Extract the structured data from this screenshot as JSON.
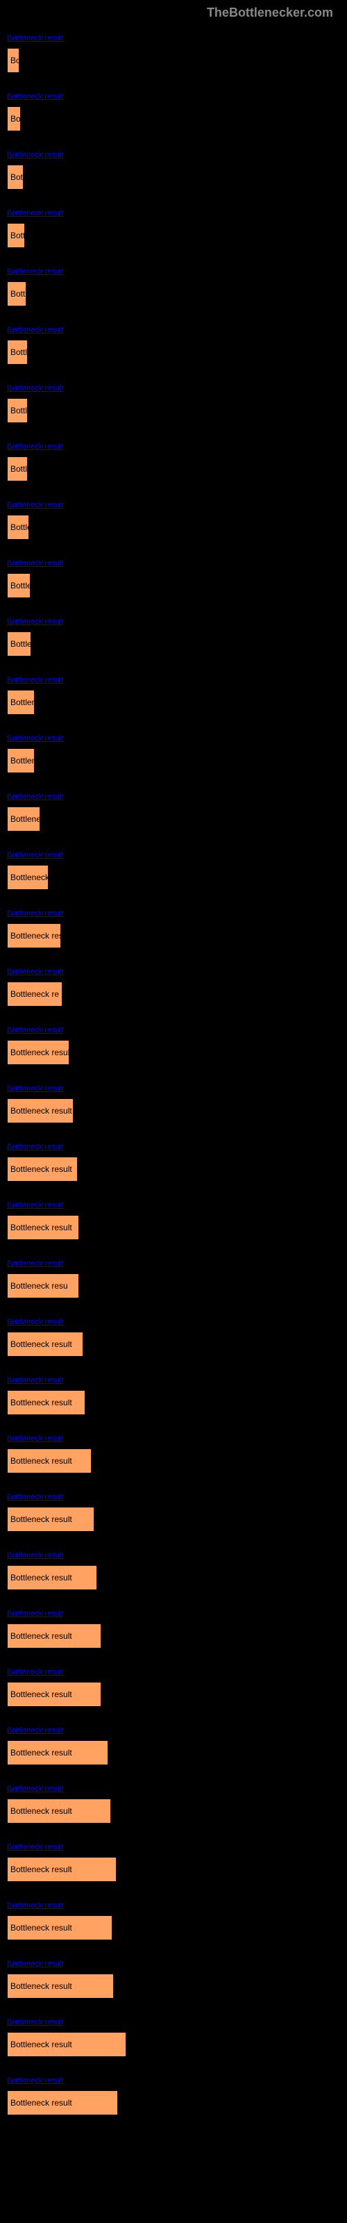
{
  "header": {
    "text": "TheBottlenecker.com"
  },
  "chart": {
    "type": "bar",
    "background_color": "#000000",
    "bar_color": "#ffa262",
    "bar_border_color": "#000000",
    "link_color": "#0000ff",
    "label_color": "#000000",
    "header_color": "#888888",
    "max_width": 172,
    "bars": [
      {
        "link": "Bottleneck result",
        "label": "Bo",
        "width": 18
      },
      {
        "link": "Bottleneck result",
        "label": "Bo",
        "width": 20
      },
      {
        "link": "Bottleneck result",
        "label": "Bot",
        "width": 24
      },
      {
        "link": "Bottleneck result",
        "label": "Bott",
        "width": 26
      },
      {
        "link": "Bottleneck result",
        "label": "Bott",
        "width": 28
      },
      {
        "link": "Bottleneck result",
        "label": "Bottl",
        "width": 30
      },
      {
        "link": "Bottleneck result",
        "label": "Bottl",
        "width": 30
      },
      {
        "link": "Bottleneck result",
        "label": "Bottl",
        "width": 30
      },
      {
        "link": "Bottleneck result",
        "label": "Bottle",
        "width": 32
      },
      {
        "link": "Bottleneck result",
        "label": "Bottle",
        "width": 34
      },
      {
        "link": "Bottleneck result",
        "label": "Bottle",
        "width": 35
      },
      {
        "link": "Bottleneck result",
        "label": "Bottlen",
        "width": 40
      },
      {
        "link": "Bottleneck result",
        "label": "Bottlen",
        "width": 40
      },
      {
        "link": "Bottleneck result",
        "label": "Bottlene",
        "width": 48
      },
      {
        "link": "Bottleneck result",
        "label": "Bottleneck",
        "width": 60
      },
      {
        "link": "Bottleneck result",
        "label": "Bottleneck resu",
        "width": 78
      },
      {
        "link": "Bottleneck result",
        "label": "Bottleneck re",
        "width": 80
      },
      {
        "link": "Bottleneck result",
        "label": "Bottleneck result",
        "width": 90
      },
      {
        "link": "Bottleneck result",
        "label": "Bottleneck result",
        "width": 96
      },
      {
        "link": "Bottleneck result",
        "label": "Bottleneck result",
        "width": 102
      },
      {
        "link": "Bottleneck result",
        "label": "Bottleneck result",
        "width": 104
      },
      {
        "link": "Bottleneck result",
        "label": "Bottleneck resu",
        "width": 104
      },
      {
        "link": "Bottleneck result",
        "label": "Bottleneck result",
        "width": 110
      },
      {
        "link": "Bottleneck result",
        "label": "Bottleneck result",
        "width": 113
      },
      {
        "link": "Bottleneck result",
        "label": "Bottleneck result",
        "width": 122
      },
      {
        "link": "Bottleneck result",
        "label": "Bottleneck result",
        "width": 126
      },
      {
        "link": "Bottleneck result",
        "label": "Bottleneck result",
        "width": 130
      },
      {
        "link": "Bottleneck result",
        "label": "Bottleneck result",
        "width": 136
      },
      {
        "link": "Bottleneck result",
        "label": "Bottleneck result",
        "width": 136
      },
      {
        "link": "Bottleneck result",
        "label": "Bottleneck result",
        "width": 146
      },
      {
        "link": "Bottleneck result",
        "label": "Bottleneck result",
        "width": 150
      },
      {
        "link": "Bottleneck result",
        "label": "Bottleneck result",
        "width": 158
      },
      {
        "link": "Bottleneck result",
        "label": "Bottleneck result",
        "width": 152
      },
      {
        "link": "Bottleneck result",
        "label": "Bottleneck result",
        "width": 154
      },
      {
        "link": "Bottleneck result",
        "label": "Bottleneck result",
        "width": 172
      },
      {
        "link": "Bottleneck result",
        "label": "Bottleneck result",
        "width": 160
      }
    ]
  }
}
